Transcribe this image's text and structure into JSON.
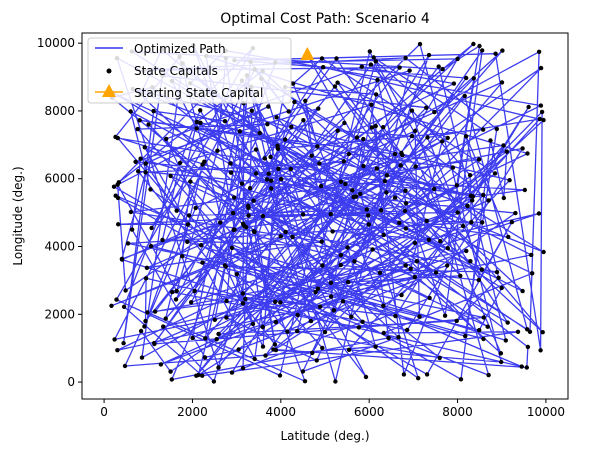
{
  "chart_data": {
    "type": "line",
    "title": "Optimal Cost Path: Scenario 4",
    "xlabel": "Latitude (deg.)",
    "ylabel": "Longitude (deg.)",
    "xlim": [
      -500,
      10500
    ],
    "ylim": [
      -500,
      10300
    ],
    "xticks": [
      0,
      2000,
      4000,
      6000,
      8000,
      10000
    ],
    "yticks": [
      0,
      2000,
      4000,
      6000,
      8000,
      10000
    ],
    "xtick_labels": [
      "0",
      "2000",
      "4000",
      "6000",
      "8000",
      "10000"
    ],
    "ytick_labels": [
      "0",
      "2000",
      "4000",
      "6000",
      "8000",
      "10000"
    ],
    "grid": false,
    "legend_position": "top-left",
    "legend": [
      {
        "label": "Optimized Path",
        "marker": "line",
        "color": "#3333ee"
      },
      {
        "label": "State Capitals",
        "marker": "dot",
        "color": "#000000"
      },
      {
        "label": "Starting State Capital",
        "marker": "triangle",
        "color": "#ffa500"
      }
    ],
    "series": [
      {
        "name": "State Capitals",
        "kind": "scatter",
        "color": "#000000",
        "point_count": 400,
        "x_range": [
          0,
          10000
        ],
        "y_range": [
          0,
          10000
        ],
        "seed": 4
      },
      {
        "name": "Optimized Path",
        "kind": "line",
        "color": "#3333ee",
        "follows": "State Capitals"
      },
      {
        "name": "Starting State Capital",
        "kind": "scatter",
        "color": "#ffa500",
        "x": [
          4600
        ],
        "y": [
          9650
        ]
      }
    ],
    "colors": {
      "path": "#3333ee",
      "capitals": "#000000",
      "start": "#ffa500"
    }
  }
}
